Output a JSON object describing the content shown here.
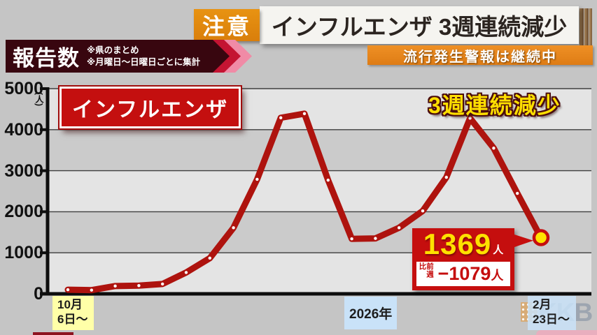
{
  "colors": {
    "line_red": "#ae130e",
    "accent_red": "#c50e0e",
    "caution_orange": "#d97e0b",
    "banner_orange": "#de7c15",
    "dark_maroon": "#38060f",
    "yellow": "#ffdf00",
    "highlight_yellow": "#ffffa8",
    "highlight_blue": "#c9e2f8"
  },
  "header": {
    "caution": "注意",
    "headline": "インフルエンザ 3週連続減少",
    "alert": "流行発生警報は継続中"
  },
  "report_banner": {
    "title": "報告数",
    "notes": [
      "※県のまとめ",
      "※月曜日〜日曜日ごとに集計"
    ]
  },
  "chart": {
    "series_label": "インフルエンザ",
    "trend_note": "3週連続減少",
    "unit": "(人)"
  },
  "callout": {
    "value": "1369",
    "unit": "人",
    "change_label": "前週比",
    "change_value": "−1079",
    "change_unit": "人"
  },
  "x_labels": {
    "start_line1": "10月",
    "start_line2": "6日〜",
    "year": "2026年",
    "end_line1": "2月",
    "end_line2": "23日〜"
  },
  "watermark": "KKB",
  "chart_data": {
    "type": "line",
    "title": "報告数",
    "ylabel": "人",
    "ylim": [
      0,
      5000
    ],
    "yticks": [
      0,
      1000,
      2000,
      3000,
      4000,
      5000
    ],
    "grid": true,
    "legend": false,
    "x_tick_labels": [
      {
        "index": 0,
        "label": "10月6日〜"
      },
      {
        "between_indices": [
          12,
          13
        ],
        "label": "2026年"
      },
      {
        "index": 20,
        "label": "2月23日〜"
      }
    ],
    "series": [
      {
        "name": "インフルエンザ",
        "values": [
          100,
          90,
          190,
          200,
          240,
          520,
          870,
          1610,
          2790,
          4290,
          4390,
          2770,
          1340,
          1350,
          1610,
          2020,
          2840,
          4280,
          3550,
          2448,
          1369
        ]
      }
    ],
    "annotations": [
      {
        "text": "3週連続減少",
        "position": "top-right"
      },
      {
        "text": "1369人 前週比−1079人",
        "attached_to": "last-point"
      }
    ],
    "last_point": {
      "value": 1369,
      "week_on_week_change": -1079,
      "marker": "yellow-dot"
    }
  }
}
